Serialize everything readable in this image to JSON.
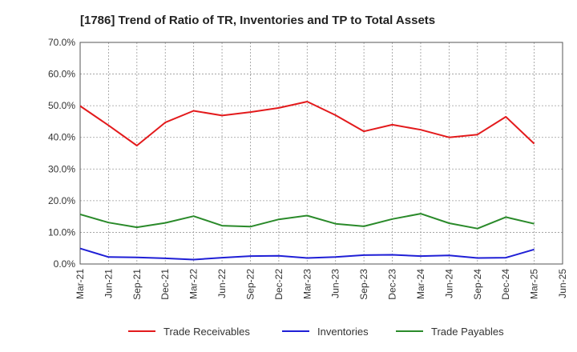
{
  "chart_data": {
    "type": "line",
    "title": "[1786]  Trend of Ratio of TR, Inventories and TP to Total Assets",
    "xlabel": "",
    "ylabel": "",
    "ylim": [
      0,
      70
    ],
    "x_ticks": [
      "Mar-21",
      "Jun-21",
      "Sep-21",
      "Dec-21",
      "Mar-22",
      "Jun-22",
      "Sep-22",
      "Dec-22",
      "Mar-23",
      "Jun-23",
      "Sep-23",
      "Dec-23",
      "Mar-24",
      "Jun-24",
      "Sep-24",
      "Dec-24",
      "Mar-25",
      "Jun-25"
    ],
    "y_ticks": [
      "0.0%",
      "10.0%",
      "20.0%",
      "30.0%",
      "40.0%",
      "50.0%",
      "60.0%",
      "70.0%"
    ],
    "y_tick_values": [
      0,
      10,
      20,
      30,
      40,
      50,
      60,
      70
    ],
    "categories": [
      "Mar-21",
      "Jun-21",
      "Sep-21",
      "Dec-21",
      "Mar-22",
      "Jun-22",
      "Sep-22",
      "Dec-22",
      "Mar-23",
      "Jun-23",
      "Sep-23",
      "Dec-23",
      "Mar-24",
      "Jun-24",
      "Sep-24",
      "Dec-24",
      "Mar-25"
    ],
    "grid": true,
    "legend_position": "bottom",
    "series": [
      {
        "name": "Trade Receivables",
        "color": "#e31a1c",
        "values": [
          49.9,
          43.8,
          37.4,
          44.7,
          48.4,
          46.9,
          48.0,
          49.3,
          51.3,
          47.0,
          41.9,
          44.0,
          42.4,
          40.0,
          40.9,
          46.5,
          38.0
        ]
      },
      {
        "name": "Inventories",
        "color": "#1f1fd6",
        "values": [
          4.9,
          2.2,
          2.1,
          1.8,
          1.4,
          2.0,
          2.5,
          2.6,
          1.9,
          2.2,
          2.8,
          2.9,
          2.5,
          2.7,
          1.9,
          2.0,
          4.6
        ]
      },
      {
        "name": "Trade Payables",
        "color": "#2a8a2a",
        "values": [
          15.7,
          13.1,
          11.6,
          13.0,
          15.1,
          12.1,
          11.8,
          14.1,
          15.3,
          12.7,
          11.9,
          14.2,
          15.9,
          12.9,
          11.2,
          14.8,
          12.7
        ]
      }
    ]
  }
}
